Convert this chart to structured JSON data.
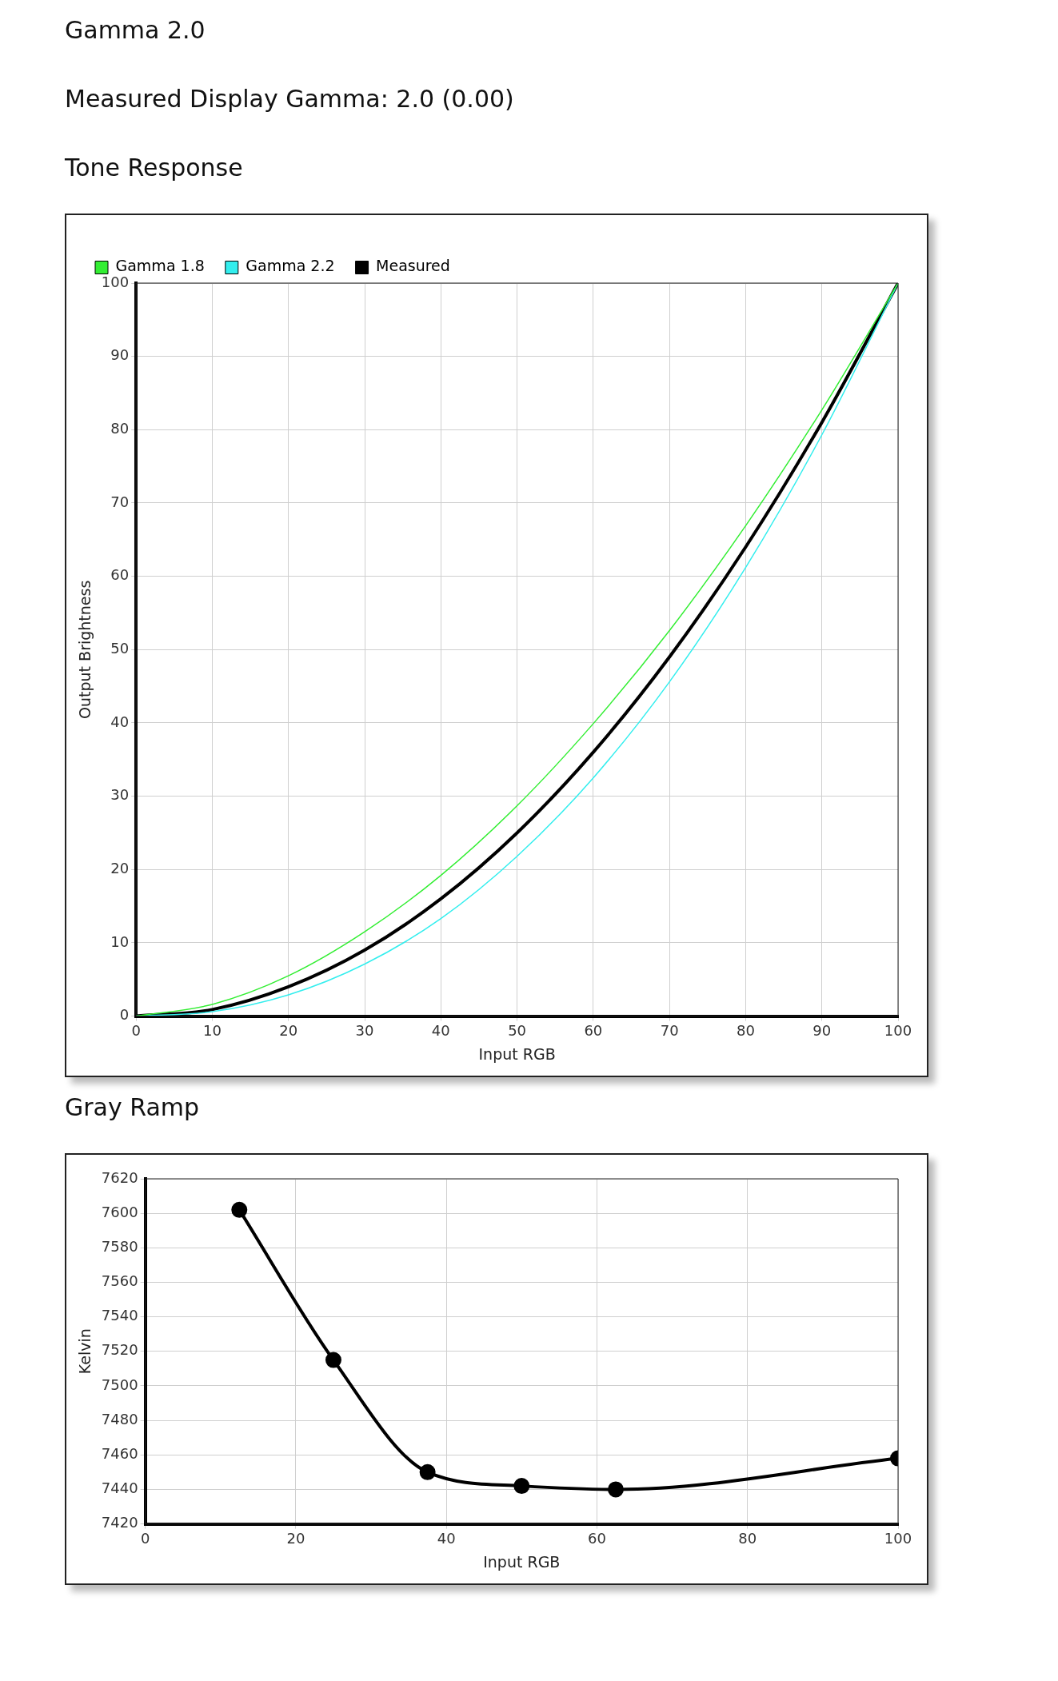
{
  "chart_data": [
    {
      "type": "line",
      "annotations": [
        "Gamma 2.0",
        "Measured Display Gamma: 2.0 (0.00)"
      ],
      "title": "Tone Response",
      "xlabel": "Input RGB",
      "ylabel": "Output Brightness",
      "x": [
        0,
        10,
        20,
        30,
        40,
        50,
        60,
        70,
        80,
        90,
        100
      ],
      "series": [
        {
          "name": "Gamma 1.8",
          "color": "#33ee33",
          "values": [
            0,
            1.6,
            5.5,
            11.5,
            19.2,
            28.7,
            39.9,
            52.6,
            66.9,
            82.7,
            100
          ]
        },
        {
          "name": "Gamma 2.2",
          "color": "#33eeee",
          "values": [
            0,
            0.6,
            2.9,
            7.1,
            13.3,
            21.8,
            32.5,
            45.6,
            61.2,
            79.3,
            100
          ]
        },
        {
          "name": "Measured",
          "color": "#000000",
          "values": [
            0,
            0.9,
            4,
            9,
            16,
            25,
            36,
            49,
            64,
            81,
            100
          ]
        }
      ],
      "xlim": [
        0,
        100
      ],
      "ylim": [
        0,
        100
      ],
      "xticks": [
        0,
        10,
        20,
        30,
        40,
        50,
        60,
        70,
        80,
        90,
        100
      ],
      "yticks": [
        0,
        10,
        20,
        30,
        40,
        50,
        60,
        70,
        80,
        90,
        100
      ],
      "grid": true,
      "legend": "top left",
      "marker": "none"
    },
    {
      "type": "line",
      "title": "Gray Ramp",
      "xlabel": "Input RGB",
      "ylabel": "Kelvin",
      "x": [
        12.5,
        25,
        37.5,
        50,
        62.5,
        100
      ],
      "series": [
        {
          "color": "#000000",
          "values": [
            7602,
            7515,
            7450,
            7442,
            7440,
            7458
          ]
        }
      ],
      "xlim": [
        0,
        100
      ],
      "ylim": [
        7420,
        7620
      ],
      "xticks": [
        0,
        20,
        40,
        60,
        80,
        100
      ],
      "yticks": [
        7420,
        7440,
        7460,
        7480,
        7500,
        7520,
        7540,
        7560,
        7580,
        7600,
        7620
      ],
      "grid": true,
      "legend": false,
      "marker": "circle"
    }
  ]
}
